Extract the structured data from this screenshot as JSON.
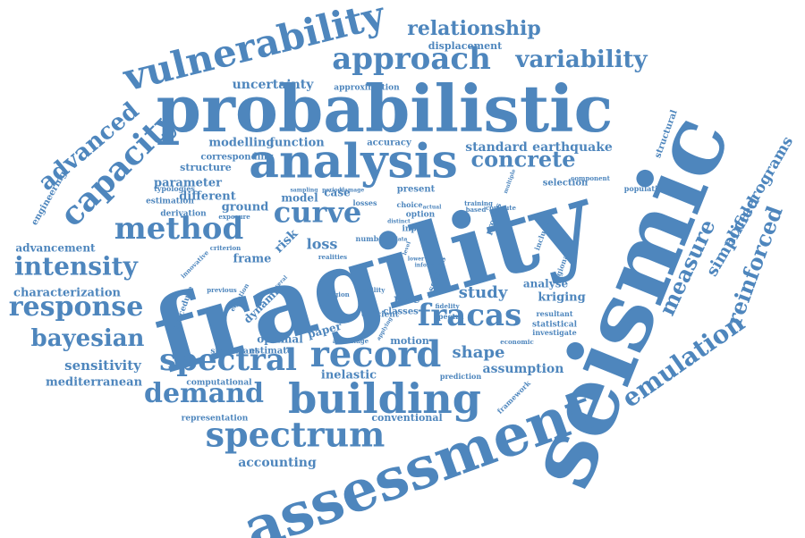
{
  "cloud": {
    "accent_color": "#4e86bd",
    "words": [
      "fragility",
      "seismic",
      "probabilistic",
      "assessment",
      "analysis",
      "vulnerability",
      "approach",
      "building",
      "spectrum",
      "record",
      "spectral",
      "fracas",
      "method",
      "curve",
      "capacity",
      "response",
      "intensity",
      "bayesian",
      "demand",
      "emulation",
      "reinforced",
      "measure",
      "concrete",
      "advanced",
      "variability",
      "relationship",
      "displacement",
      "uncertainty",
      "approximation",
      "modelling",
      "function",
      "accuracy",
      "standard",
      "earthquake",
      "corresponding",
      "structure",
      "parameter",
      "different",
      "ground",
      "model",
      "case",
      "typologies",
      "estimation",
      "derivation",
      "engineering",
      "advancement",
      "characterization",
      "sensitivity",
      "mediterranean",
      "accelerograms",
      "simplified",
      "structural",
      "kriging",
      "analyse",
      "study",
      "shape",
      "assumption",
      "motion",
      "optimal",
      "estimate",
      "computational",
      "representation",
      "conventional",
      "accounting",
      "inelastic",
      "prediction",
      "framework",
      "resultant",
      "statistical",
      "investigate",
      "economic",
      "paper",
      "efficient",
      "dynamic",
      "procedure",
      "significant",
      "rise",
      "classes",
      "loss",
      "risk",
      "frame",
      "selection",
      "population",
      "component",
      "compute",
      "regional",
      "including",
      "multiple",
      "proxies",
      "training",
      "based",
      "fidelity",
      "spectra",
      "assesses",
      "option",
      "input",
      "number",
      "ability",
      "present",
      "choice",
      "losses",
      "sampling",
      "period",
      "damage",
      "exposure",
      "criterion",
      "innovative",
      "previous",
      "equation",
      "several",
      "realities",
      "region",
      "advantage",
      "applying",
      "actual",
      "distinct",
      "data",
      "level",
      "lower",
      "inform"
    ]
  }
}
